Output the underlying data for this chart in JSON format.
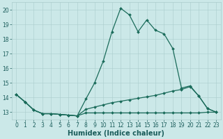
{
  "line1_x": [
    0,
    1,
    2,
    3,
    4,
    5,
    6,
    7,
    8,
    9,
    10,
    11,
    12,
    13,
    14,
    15,
    16,
    17,
    18,
    19,
    20,
    21,
    22,
    23
  ],
  "line1_y": [
    14.2,
    13.7,
    13.15,
    12.9,
    12.9,
    12.85,
    12.8,
    12.75,
    13.9,
    15.0,
    16.5,
    18.5,
    20.1,
    19.65,
    18.5,
    19.3,
    18.6,
    18.35,
    17.35,
    14.65,
    14.8,
    14.1,
    13.25,
    13.0
  ],
  "line2_x": [
    0,
    1,
    2,
    3,
    4,
    5,
    6,
    7,
    8,
    9,
    10,
    11,
    12,
    13,
    14,
    15,
    16,
    17,
    18,
    19,
    20,
    21,
    22,
    23
  ],
  "line2_y": [
    14.2,
    13.7,
    13.15,
    12.9,
    12.9,
    12.85,
    12.8,
    12.75,
    13.2,
    13.35,
    13.5,
    13.65,
    13.75,
    13.85,
    13.95,
    14.05,
    14.15,
    14.3,
    14.45,
    14.55,
    14.75,
    14.1,
    13.25,
    13.0
  ],
  "line3_x": [
    0,
    1,
    2,
    3,
    4,
    5,
    6,
    7,
    8,
    9,
    10,
    11,
    12,
    13,
    14,
    15,
    16,
    17,
    18,
    19,
    20,
    21,
    22,
    23
  ],
  "line3_y": [
    14.2,
    13.7,
    13.15,
    12.9,
    12.9,
    12.85,
    12.8,
    12.75,
    12.95,
    12.95,
    12.95,
    12.95,
    12.95,
    12.95,
    12.95,
    12.95,
    12.95,
    12.95,
    12.95,
    12.95,
    12.95,
    12.95,
    13.0,
    13.0
  ],
  "line_color": "#1a6b5a",
  "bg_color": "#cbe8e8",
  "grid_color": "#aacccc",
  "xlabel": "Humidex (Indice chaleur)",
  "xlabel_color": "#1a5c5a",
  "tick_color": "#1a5c5a",
  "ylim": [
    12.5,
    20.5
  ],
  "xlim": [
    -0.5,
    23.5
  ],
  "yticks": [
    13,
    14,
    15,
    16,
    17,
    18,
    19,
    20
  ],
  "xticks": [
    0,
    1,
    2,
    3,
    4,
    5,
    6,
    7,
    8,
    9,
    10,
    11,
    12,
    13,
    14,
    15,
    16,
    17,
    18,
    19,
    20,
    21,
    22,
    23
  ],
  "xlabel_fontsize": 7,
  "tick_fontsize": 5.5
}
